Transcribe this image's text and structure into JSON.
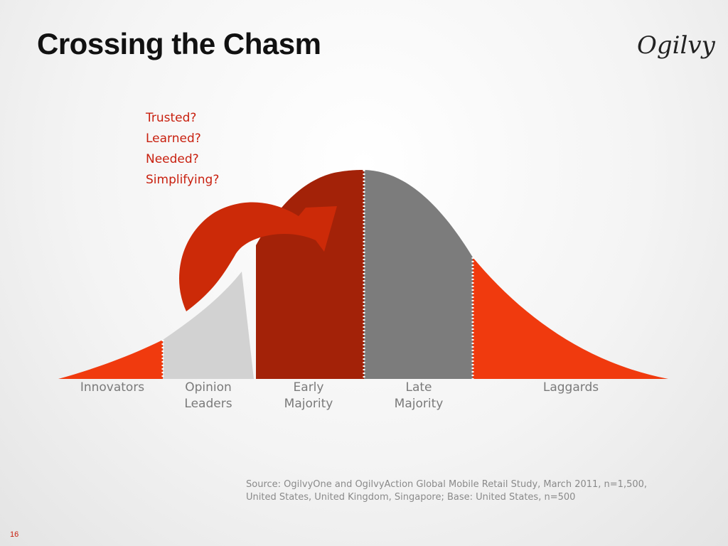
{
  "slide": {
    "title": "Crossing the Chasm",
    "logo_text": "Ogilvy",
    "page_number": "16"
  },
  "questions": [
    "Trusted?",
    "Learned?",
    "Needed?",
    "Simplifying?"
  ],
  "segments": [
    {
      "line1": "Innovators",
      "line2": "",
      "color": "#f03a0e"
    },
    {
      "line1": "Opinion",
      "line2": "Leaders",
      "color": "#d2d2d2"
    },
    {
      "line1": "Early",
      "line2": "Majority",
      "color": "#a32208"
    },
    {
      "line1": "Late",
      "line2": "Majority",
      "color": "#7c7c7c"
    },
    {
      "line1": "Laggards",
      "line2": "",
      "color": "#f03a0e"
    }
  ],
  "arrow": {
    "color": "#cc2a08"
  },
  "source": {
    "line1": "Source: OgilvyOne and OgilvyAction Global Mobile Retail Study, March 2011, n=1,500,",
    "line2": "United States, United Kingdom, Singapore; Base: United States, n=500"
  }
}
